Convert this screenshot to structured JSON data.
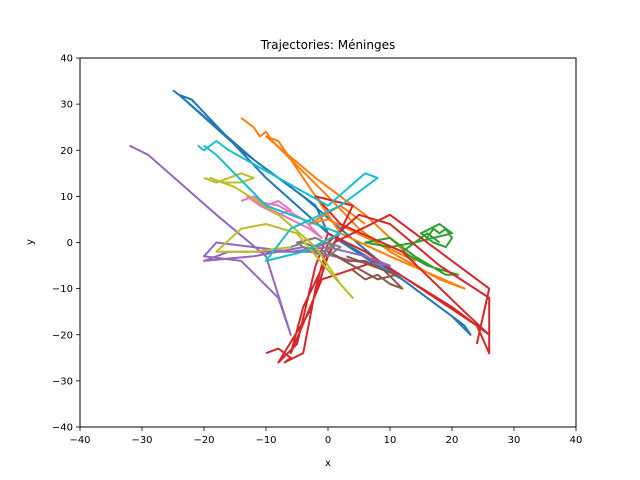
{
  "chart_data": {
    "type": "line",
    "title": "Trajectories: Méninges",
    "xlabel": "x",
    "ylabel": "y",
    "xlim": [
      -40,
      40
    ],
    "ylim": [
      -40,
      40
    ],
    "xticks": [
      "−40",
      "−30",
      "−20",
      "−10",
      "0",
      "10",
      "20",
      "30",
      "40"
    ],
    "yticks": [
      "−40",
      "−30",
      "−20",
      "−10",
      "0",
      "10",
      "20",
      "30",
      "40"
    ],
    "grid": false,
    "legend": "none",
    "colors": [
      "#1f77b4",
      "#ff7f0e",
      "#2ca02c",
      "#d62728",
      "#9467bd",
      "#8c564b",
      "#e377c2",
      "#7f7f7f",
      "#bcbd22",
      "#17becf"
    ],
    "series": [
      {
        "values": [
          [
            -25,
            33
          ],
          [
            -24,
            32
          ],
          [
            -12,
            18
          ],
          [
            -2,
            8
          ],
          [
            0,
            2
          ],
          [
            8,
            -5
          ],
          [
            12,
            -8
          ],
          [
            18,
            -14
          ],
          [
            22,
            -18
          ],
          [
            23,
            -20
          ],
          [
            20,
            -16
          ],
          [
            10,
            -6
          ],
          [
            0,
            2
          ],
          [
            -10,
            14
          ],
          [
            -22,
            31
          ],
          [
            -24,
            32
          ],
          [
            -14,
            20
          ],
          [
            -4,
            10
          ],
          [
            2,
            3
          ],
          [
            10,
            -6
          ],
          [
            17,
            -13
          ]
        ]
      },
      {
        "values": [
          [
            -14,
            27
          ],
          [
            -12,
            25
          ],
          [
            -11,
            23
          ],
          [
            -10,
            24
          ],
          [
            -9,
            22
          ],
          [
            0,
            10
          ],
          [
            5,
            3
          ],
          [
            10,
            -2
          ],
          [
            18,
            -8
          ],
          [
            22,
            -10
          ],
          [
            10,
            -3
          ],
          [
            2,
            2
          ],
          [
            -8,
            22
          ],
          [
            -10,
            23
          ],
          [
            -2,
            14
          ],
          [
            6,
            6
          ],
          [
            14,
            -4
          ],
          [
            0,
            5
          ],
          [
            -3,
            4
          ],
          [
            2,
            8
          ],
          [
            6,
            4
          ]
        ]
      },
      {
        "values": [
          [
            16,
            1
          ],
          [
            17,
            3
          ],
          [
            18,
            2
          ],
          [
            19,
            3
          ],
          [
            20,
            1
          ],
          [
            19,
            -1
          ],
          [
            17,
            0
          ],
          [
            15,
            2
          ],
          [
            18,
            4
          ],
          [
            20,
            2
          ],
          [
            14,
            0
          ],
          [
            10,
            -1
          ],
          [
            6,
            0
          ],
          [
            10,
            1
          ],
          [
            14,
            -3
          ],
          [
            19,
            -7
          ],
          [
            21,
            -7
          ],
          [
            16,
            -5
          ],
          [
            12,
            -2
          ],
          [
            16,
            2
          ],
          [
            18,
            0
          ]
        ]
      },
      {
        "values": [
          [
            -10,
            -24
          ],
          [
            -8,
            -23
          ],
          [
            -6,
            -25
          ],
          [
            -7,
            -26
          ],
          [
            -4,
            -24
          ],
          [
            -2,
            -10
          ],
          [
            0,
            0
          ],
          [
            5,
            6
          ],
          [
            10,
            4
          ],
          [
            18,
            -5
          ],
          [
            26,
            -12
          ],
          [
            26,
            -24
          ],
          [
            24,
            -18
          ],
          [
            15,
            -10
          ],
          [
            6,
            -2
          ],
          [
            0,
            2
          ],
          [
            -2,
            -5
          ],
          [
            -5,
            -22
          ],
          [
            -8,
            -26
          ],
          [
            -3,
            -15
          ],
          [
            0,
            -3
          ],
          [
            4,
            8
          ],
          [
            -2,
            10
          ],
          [
            2,
            4
          ],
          [
            12,
            -2
          ],
          [
            22,
            -15
          ],
          [
            26,
            -20
          ],
          [
            20,
            -14
          ],
          [
            8,
            -4
          ],
          [
            -1,
            -8
          ],
          [
            -6,
            -24
          ],
          [
            -4,
            -14
          ],
          [
            1,
            0
          ],
          [
            10,
            6
          ],
          [
            20,
            -4
          ],
          [
            26,
            -10
          ],
          [
            24,
            -22
          ]
        ]
      },
      {
        "values": [
          [
            -32,
            21
          ],
          [
            -29,
            19
          ],
          [
            -18,
            6
          ],
          [
            -10,
            -3
          ],
          [
            -6,
            -20
          ],
          [
            -8,
            -12
          ],
          [
            -14,
            -4
          ],
          [
            -20,
            -3
          ],
          [
            -18,
            0
          ],
          [
            -12,
            -1
          ],
          [
            -6,
            -2
          ],
          [
            0,
            -1
          ],
          [
            6,
            -3
          ],
          [
            10,
            -5
          ],
          [
            4,
            -4
          ],
          [
            -2,
            -2
          ],
          [
            -10,
            -2
          ],
          [
            -16,
            -2
          ],
          [
            -20,
            -4
          ],
          [
            -12,
            -3
          ],
          [
            -4,
            -1
          ]
        ]
      },
      {
        "values": [
          [
            4,
            -6
          ],
          [
            6,
            -8
          ],
          [
            8,
            -7
          ],
          [
            10,
            -9
          ],
          [
            12,
            -10
          ],
          [
            9,
            -6
          ],
          [
            6,
            -4
          ],
          [
            3,
            -4
          ],
          [
            0,
            -2
          ],
          [
            4,
            -5
          ],
          [
            8,
            -8
          ],
          [
            11,
            -7
          ],
          [
            7,
            -5
          ],
          [
            3,
            -3
          ]
        ]
      },
      {
        "values": [
          [
            -14,
            9
          ],
          [
            -12,
            10
          ],
          [
            -10,
            8
          ],
          [
            -8,
            9
          ],
          [
            -6,
            7
          ],
          [
            -8,
            6
          ],
          [
            -11,
            8
          ],
          [
            -13,
            10
          ],
          [
            -9,
            7
          ],
          [
            -6,
            5
          ],
          [
            -3,
            3
          ],
          [
            -1,
            1
          ],
          [
            -4,
            5
          ],
          [
            -8,
            8
          ],
          [
            -12,
            9
          ]
        ]
      },
      {
        "values": [
          [
            -6,
            -1
          ],
          [
            -4,
            0
          ],
          [
            -2,
            -1
          ],
          [
            0,
            0
          ],
          [
            2,
            -1
          ],
          [
            0,
            -3
          ],
          [
            -3,
            -2
          ],
          [
            -5,
            0
          ],
          [
            -2,
            1
          ],
          [
            1,
            -1
          ],
          [
            -1,
            -2
          ],
          [
            -4,
            -1
          ]
        ]
      },
      {
        "values": [
          [
            -20,
            14
          ],
          [
            -18,
            13
          ],
          [
            -16,
            14
          ],
          [
            -14,
            15
          ],
          [
            -12,
            14
          ],
          [
            -14,
            13
          ],
          [
            -17,
            13
          ],
          [
            -19,
            14
          ],
          [
            -15,
            12
          ],
          [
            -8,
            6
          ],
          [
            -2,
            -1
          ],
          [
            2,
            -9
          ],
          [
            4,
            -12
          ],
          [
            0,
            -6
          ],
          [
            -5,
            2
          ],
          [
            -10,
            4
          ],
          [
            -14,
            3
          ],
          [
            -18,
            -2
          ],
          [
            -12,
            -2
          ],
          [
            -6,
            -1
          ]
        ]
      },
      {
        "values": [
          [
            -21,
            21
          ],
          [
            -20,
            20
          ],
          [
            -19,
            21
          ],
          [
            -18,
            22
          ],
          [
            -16,
            20
          ],
          [
            -8,
            14
          ],
          [
            0,
            8
          ],
          [
            6,
            15
          ],
          [
            8,
            14
          ],
          [
            7,
            13
          ],
          [
            2,
            8
          ],
          [
            -6,
            3
          ],
          [
            -10,
            -4
          ],
          [
            -4,
            -2
          ],
          [
            2,
            2
          ],
          [
            -10,
            8
          ],
          [
            -18,
            19
          ],
          [
            -20,
            21
          ]
        ]
      }
    ]
  }
}
